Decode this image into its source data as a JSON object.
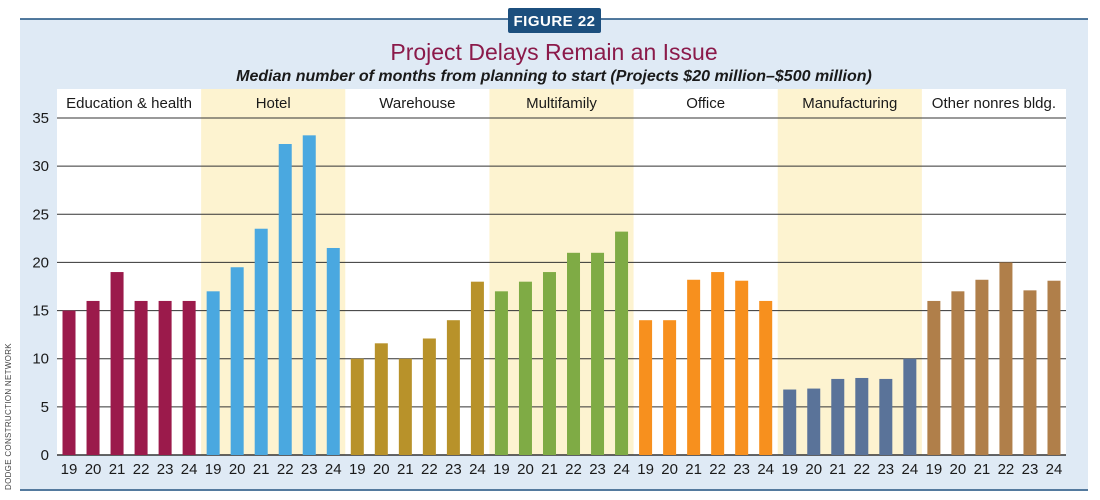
{
  "badge": "FIGURE 22",
  "title": "Project Delays Remain an Issue",
  "subtitle": "Median number of months from planning to start (Projects $20 million–$500 million)",
  "side_credit": "DODGE CONSTRUCTION NETWORK",
  "colors": {
    "frame_bg": "#dfeaf5",
    "plot_bg": "#ffffff",
    "band": "#fdf3d0",
    "grid": "#333333",
    "badge_bg": "#1c4f7e",
    "title": "#8b1a4a"
  },
  "chart_data": {
    "type": "bar",
    "title": "Project Delays Remain an Issue",
    "subtitle": "Median number of months from planning to start (Projects $20 million–$500 million)",
    "xlabel": "",
    "ylabel": "",
    "ylim": [
      0,
      35
    ],
    "y_ticks": [
      0,
      5,
      10,
      15,
      20,
      25,
      30,
      35
    ],
    "grid": true,
    "legend": "none",
    "categories": [
      "19",
      "20",
      "21",
      "22",
      "23",
      "24"
    ],
    "groups": [
      {
        "name": "Education & health",
        "color": "#9b1a4b",
        "shaded": false,
        "values": [
          15,
          16,
          19,
          16,
          16,
          16
        ]
      },
      {
        "name": "Hotel",
        "color": "#4aa8e0",
        "shaded": true,
        "values": [
          17,
          19.5,
          23.5,
          32.3,
          33.2,
          21.5
        ]
      },
      {
        "name": "Warehouse",
        "color": "#b8922a",
        "shaded": false,
        "values": [
          10,
          11.6,
          10,
          12.1,
          14,
          18
        ]
      },
      {
        "name": "Multifamily",
        "color": "#7fab45",
        "shaded": true,
        "values": [
          17,
          18,
          19,
          21,
          21,
          23.2
        ]
      },
      {
        "name": "Office",
        "color": "#f7901e",
        "shaded": false,
        "values": [
          14,
          14,
          18.2,
          19,
          18.1,
          16
        ]
      },
      {
        "name": "Manufacturing",
        "color": "#5a7399",
        "shaded": true,
        "values": [
          6.8,
          6.9,
          7.9,
          8,
          7.9,
          10
        ]
      },
      {
        "name": "Other nonres bldg.",
        "color": "#b07f4a",
        "shaded": false,
        "values": [
          16,
          17,
          18.2,
          20,
          17.1,
          18.1
        ]
      }
    ]
  }
}
